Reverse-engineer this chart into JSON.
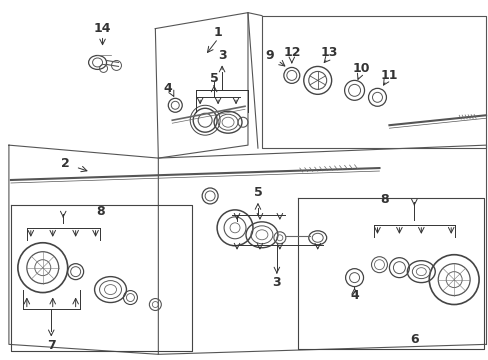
{
  "bg": "#ffffff",
  "lc": "#333333",
  "fw": 4.89,
  "fh": 3.6,
  "dpi": 100,
  "lfs": 9,
  "panel_color": "#555555",
  "line_color": "#333333"
}
